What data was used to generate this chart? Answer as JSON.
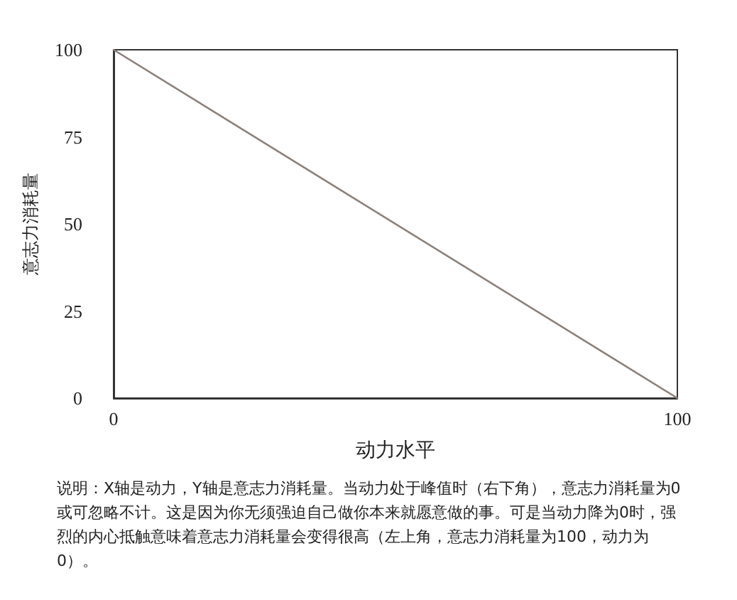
{
  "chart_data": {
    "type": "line",
    "xlabel": "动力水平",
    "ylabel": "意志力消耗量",
    "x": [
      0,
      100
    ],
    "series": [
      {
        "color": "#8a807a",
        "values": [
          100,
          0
        ]
      }
    ],
    "xlim": [
      0,
      100
    ],
    "xticks": [
      0,
      100
    ],
    "ylim": [
      0,
      100
    ],
    "yticks": [
      0,
      25,
      50,
      75,
      100
    ],
    "grid": false,
    "marker": "none",
    "line_style": "solid",
    "annotations": [
      "说明：X轴是动力，Y轴是意志力消耗量。当动力处于峰值时（右下角），意志力消耗量为0或可忽略不计。这是因为你无须强迫自己做你本来就愿意做的事。可是当动力降为0时，强烈的内心抵触意味着意志力消耗量会变得很高（左上角，意志力消耗量为100，动力为0）。"
    ]
  }
}
